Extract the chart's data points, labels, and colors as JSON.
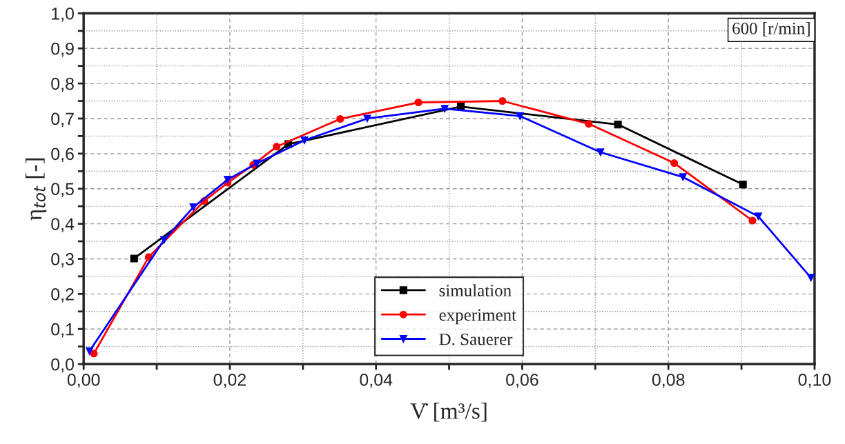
{
  "chart_data": {
    "type": "line",
    "xlabel": "V̇ [m³/s]",
    "ylabel": "η$_{tot}$ [-]",
    "annotations": [
      "600 [r/min]"
    ],
    "xlim": [
      0,
      0.1
    ],
    "ylim": [
      0,
      1.0
    ],
    "xticks": [
      {
        "value": 0,
        "label": "0,00"
      },
      {
        "value": 0.01,
        "label": null
      },
      {
        "value": 0.02,
        "label": "0,02"
      },
      {
        "value": 0.03,
        "label": null
      },
      {
        "value": 0.04,
        "label": "0,04"
      },
      {
        "value": 0.05,
        "label": null
      },
      {
        "value": 0.06,
        "label": "0,06"
      },
      {
        "value": 0.07,
        "label": null
      },
      {
        "value": 0.08,
        "label": "0,08"
      },
      {
        "value": 0.09,
        "label": null
      },
      {
        "value": 0.1,
        "label": "0,10"
      }
    ],
    "yticks": [
      {
        "value": 0,
        "label": "0,0"
      },
      {
        "value": 0.05,
        "label": null
      },
      {
        "value": 0.1,
        "label": "0,1"
      },
      {
        "value": 0.15,
        "label": null
      },
      {
        "value": 0.2,
        "label": "0,2"
      },
      {
        "value": 0.25,
        "label": null
      },
      {
        "value": 0.3,
        "label": "0,3"
      },
      {
        "value": 0.35,
        "label": null
      },
      {
        "value": 0.4,
        "label": "0,4"
      },
      {
        "value": 0.45,
        "label": null
      },
      {
        "value": 0.5,
        "label": "0,5"
      },
      {
        "value": 0.55,
        "label": null
      },
      {
        "value": 0.6,
        "label": "0,6"
      },
      {
        "value": 0.65,
        "label": null
      },
      {
        "value": 0.7,
        "label": "0,7"
      },
      {
        "value": 0.75,
        "label": null
      },
      {
        "value": 0.8,
        "label": "0,8"
      },
      {
        "value": 0.85,
        "label": null
      },
      {
        "value": 0.9,
        "label": "0,9"
      },
      {
        "value": 0.95,
        "label": null
      },
      {
        "value": 1.0,
        "label": "1,0"
      }
    ],
    "grid": true,
    "legend": "bottom",
    "line_style": "solid",
    "series": [
      {
        "name": "simulation",
        "color": "#000000",
        "marker": "square",
        "x": [
          0.0069,
          0.028,
          0.0516,
          0.0731,
          0.0902
        ],
        "values": [
          0.301,
          0.627,
          0.734,
          0.683,
          0.512
        ]
      },
      {
        "name": "experiment",
        "color": "#ff0000",
        "marker": "circle",
        "x": [
          0.0014,
          0.0089,
          0.0165,
          0.0197,
          0.0232,
          0.0264,
          0.0351,
          0.0458,
          0.0573,
          0.0691,
          0.0808,
          0.0915
        ],
        "values": [
          0.03,
          0.305,
          0.465,
          0.517,
          0.568,
          0.62,
          0.699,
          0.746,
          0.75,
          0.685,
          0.573,
          0.409
        ]
      },
      {
        "name": "D. Sauerer",
        "color": "#0000ff",
        "marker": "triangle",
        "x": [
          0.0008,
          0.011,
          0.015,
          0.0197,
          0.0237,
          0.0302,
          0.0388,
          0.0494,
          0.0597,
          0.0707,
          0.082,
          0.0923,
          0.0995
        ],
        "values": [
          0.037,
          0.354,
          0.447,
          0.526,
          0.572,
          0.638,
          0.7,
          0.728,
          0.707,
          0.604,
          0.533,
          0.421,
          0.246
        ]
      }
    ]
  }
}
